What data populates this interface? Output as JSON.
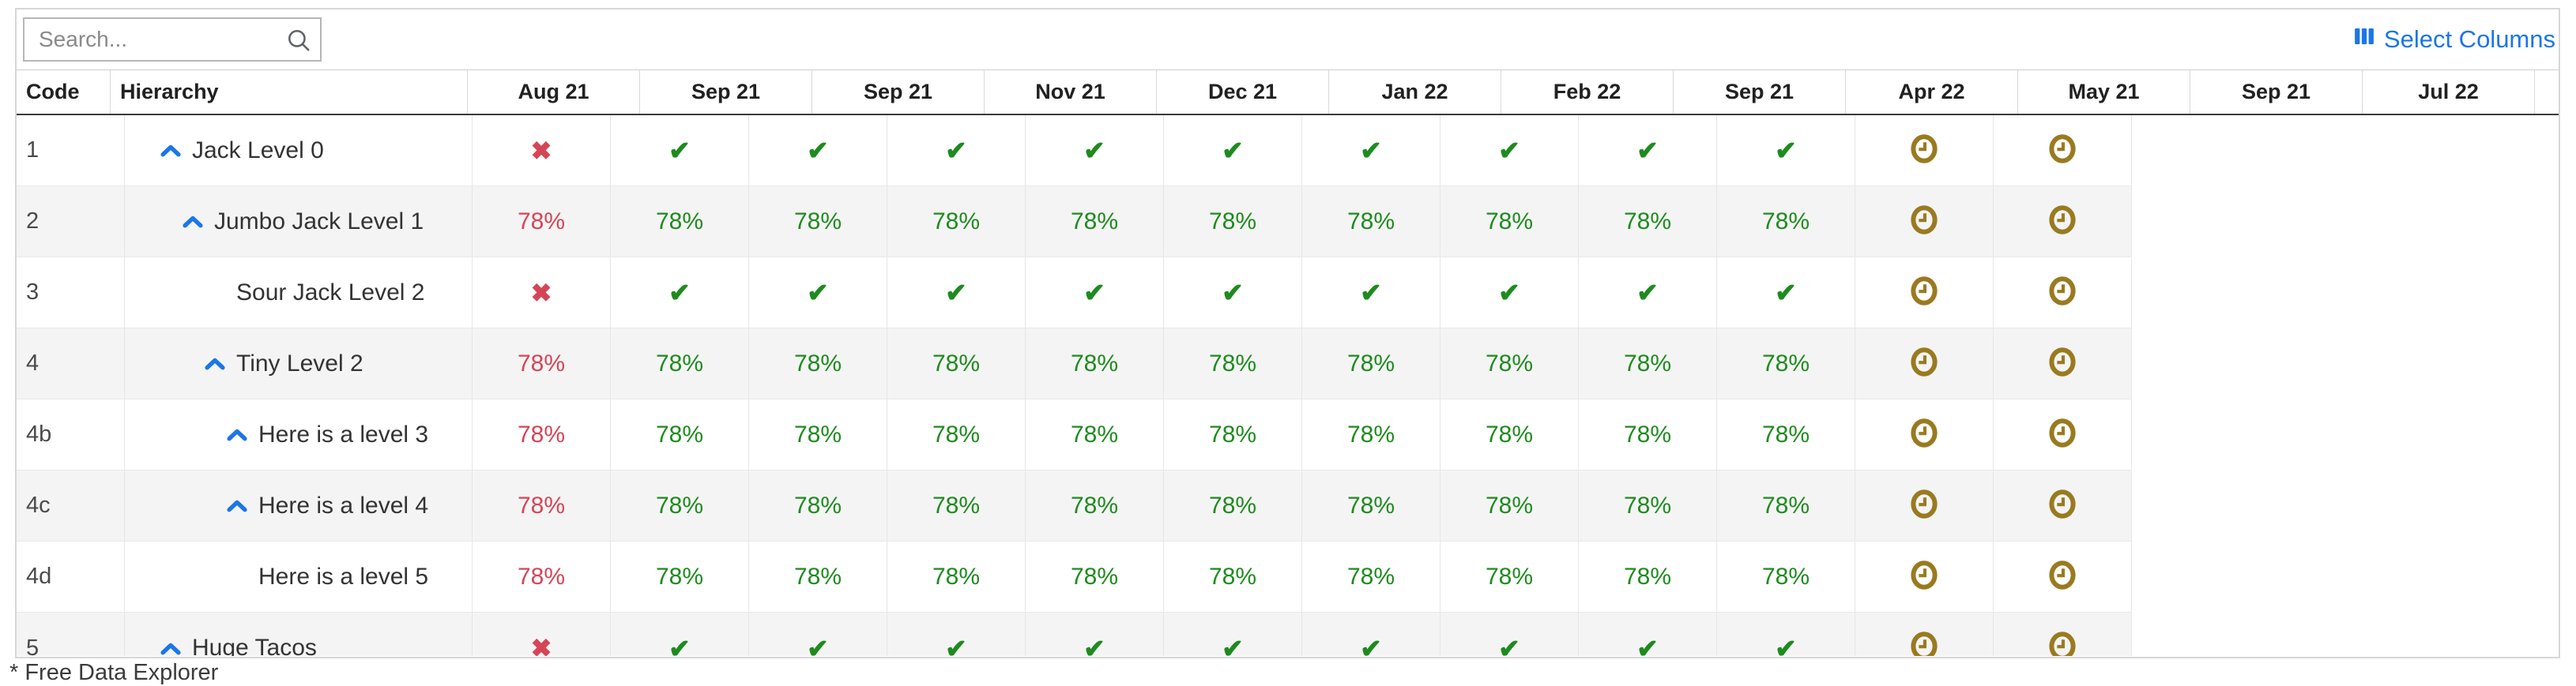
{
  "toolbar": {
    "search_placeholder": "Search...",
    "select_columns_label": "Select Columns"
  },
  "table": {
    "code_header": "Code",
    "hierarchy_header": "Hierarchy",
    "month_headers": [
      "Aug 21",
      "Sep 21",
      "Sep 21",
      "Nov 21",
      "Dec 21",
      "Jan 22",
      "Feb 22",
      "Sep 21",
      "Apr 22",
      "May 21",
      "Sep 21",
      "Jul 22"
    ],
    "rows": [
      {
        "code": "1",
        "name": "Jack Level 0",
        "level": 0,
        "chevron": true,
        "cells": [
          {
            "type": "fail"
          },
          {
            "type": "pass"
          },
          {
            "type": "pass"
          },
          {
            "type": "pass"
          },
          {
            "type": "pass"
          },
          {
            "type": "pass"
          },
          {
            "type": "pass"
          },
          {
            "type": "pass"
          },
          {
            "type": "pass"
          },
          {
            "type": "pass"
          },
          {
            "type": "pending"
          },
          {
            "type": "pending"
          }
        ]
      },
      {
        "code": "2",
        "name": "Jumbo Jack Level 1",
        "level": 1,
        "chevron": true,
        "cells": [
          {
            "type": "pct_bad",
            "text": "78%"
          },
          {
            "type": "pct_ok",
            "text": "78%"
          },
          {
            "type": "pct_ok",
            "text": "78%"
          },
          {
            "type": "pct_ok",
            "text": "78%"
          },
          {
            "type": "pct_ok",
            "text": "78%"
          },
          {
            "type": "pct_ok",
            "text": "78%"
          },
          {
            "type": "pct_ok",
            "text": "78%"
          },
          {
            "type": "pct_ok",
            "text": "78%"
          },
          {
            "type": "pct_ok",
            "text": "78%"
          },
          {
            "type": "pct_ok",
            "text": "78%"
          },
          {
            "type": "pending"
          },
          {
            "type": "pending"
          }
        ]
      },
      {
        "code": "3",
        "name": "Sour Jack Level 2",
        "level": 2,
        "chevron": false,
        "cells": [
          {
            "type": "fail"
          },
          {
            "type": "pass"
          },
          {
            "type": "pass"
          },
          {
            "type": "pass"
          },
          {
            "type": "pass"
          },
          {
            "type": "pass"
          },
          {
            "type": "pass"
          },
          {
            "type": "pass"
          },
          {
            "type": "pass"
          },
          {
            "type": "pass"
          },
          {
            "type": "pending"
          },
          {
            "type": "pending"
          }
        ]
      },
      {
        "code": "4",
        "name": "Tiny Level 2",
        "level": 2,
        "chevron": true,
        "cells": [
          {
            "type": "pct_bad",
            "text": "78%"
          },
          {
            "type": "pct_ok",
            "text": "78%"
          },
          {
            "type": "pct_ok",
            "text": "78%"
          },
          {
            "type": "pct_ok",
            "text": "78%"
          },
          {
            "type": "pct_ok",
            "text": "78%"
          },
          {
            "type": "pct_ok",
            "text": "78%"
          },
          {
            "type": "pct_ok",
            "text": "78%"
          },
          {
            "type": "pct_ok",
            "text": "78%"
          },
          {
            "type": "pct_ok",
            "text": "78%"
          },
          {
            "type": "pct_ok",
            "text": "78%"
          },
          {
            "type": "pending"
          },
          {
            "type": "pending"
          }
        ]
      },
      {
        "code": "4b",
        "name": "Here is a level 3",
        "level": 3,
        "chevron": true,
        "cells": [
          {
            "type": "pct_bad",
            "text": "78%"
          },
          {
            "type": "pct_ok",
            "text": "78%"
          },
          {
            "type": "pct_ok",
            "text": "78%"
          },
          {
            "type": "pct_ok",
            "text": "78%"
          },
          {
            "type": "pct_ok",
            "text": "78%"
          },
          {
            "type": "pct_ok",
            "text": "78%"
          },
          {
            "type": "pct_ok",
            "text": "78%"
          },
          {
            "type": "pct_ok",
            "text": "78%"
          },
          {
            "type": "pct_ok",
            "text": "78%"
          },
          {
            "type": "pct_ok",
            "text": "78%"
          },
          {
            "type": "pending"
          },
          {
            "type": "pending"
          }
        ]
      },
      {
        "code": "4c",
        "name": "Here is a level 4",
        "level": 3,
        "chevron": true,
        "cells": [
          {
            "type": "pct_bad",
            "text": "78%"
          },
          {
            "type": "pct_ok",
            "text": "78%"
          },
          {
            "type": "pct_ok",
            "text": "78%"
          },
          {
            "type": "pct_ok",
            "text": "78%"
          },
          {
            "type": "pct_ok",
            "text": "78%"
          },
          {
            "type": "pct_ok",
            "text": "78%"
          },
          {
            "type": "pct_ok",
            "text": "78%"
          },
          {
            "type": "pct_ok",
            "text": "78%"
          },
          {
            "type": "pct_ok",
            "text": "78%"
          },
          {
            "type": "pct_ok",
            "text": "78%"
          },
          {
            "type": "pending"
          },
          {
            "type": "pending"
          }
        ]
      },
      {
        "code": "4d",
        "name": "Here is a level 5",
        "level": 3,
        "chevron": false,
        "cells": [
          {
            "type": "pct_bad",
            "text": "78%"
          },
          {
            "type": "pct_ok",
            "text": "78%"
          },
          {
            "type": "pct_ok",
            "text": "78%"
          },
          {
            "type": "pct_ok",
            "text": "78%"
          },
          {
            "type": "pct_ok",
            "text": "78%"
          },
          {
            "type": "pct_ok",
            "text": "78%"
          },
          {
            "type": "pct_ok",
            "text": "78%"
          },
          {
            "type": "pct_ok",
            "text": "78%"
          },
          {
            "type": "pct_ok",
            "text": "78%"
          },
          {
            "type": "pct_ok",
            "text": "78%"
          },
          {
            "type": "pending"
          },
          {
            "type": "pending"
          }
        ]
      },
      {
        "code": "5",
        "name": "Huge Tacos",
        "level": 0,
        "chevron": true,
        "cells": [
          {
            "type": "fail"
          },
          {
            "type": "pass"
          },
          {
            "type": "pass"
          },
          {
            "type": "pass"
          },
          {
            "type": "pass"
          },
          {
            "type": "pass"
          },
          {
            "type": "pass"
          },
          {
            "type": "pass"
          },
          {
            "type": "pass"
          },
          {
            "type": "pass"
          },
          {
            "type": "pending"
          },
          {
            "type": "pending"
          }
        ]
      }
    ]
  },
  "footnote": "* Free Data Explorer",
  "colors": {
    "accent_blue": "#1b76e8",
    "status_red": "#d64556",
    "status_green": "#1e8b1e",
    "pending_gold": "#9a7a20"
  }
}
